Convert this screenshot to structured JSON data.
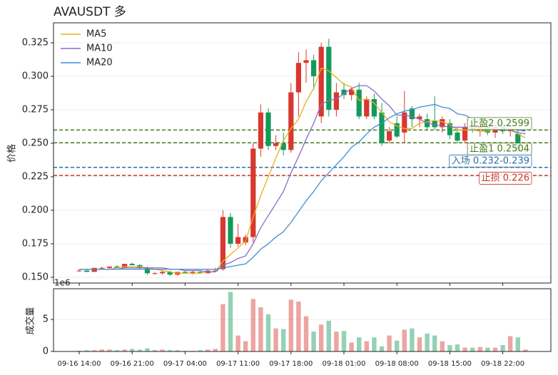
{
  "chart_data": {
    "type": "candlestick",
    "title": "AVAUSDT 多",
    "ylabel": "价格",
    "volume_ylabel": "成交量",
    "volume_offset_label": "1e6",
    "categories": [
      "09-16 14:00",
      null,
      null,
      null,
      null,
      null,
      null,
      "09-16 21:00",
      null,
      null,
      null,
      null,
      null,
      null,
      "09-17 04:00",
      null,
      null,
      null,
      null,
      null,
      null,
      "09-17 11:00",
      null,
      null,
      null,
      null,
      null,
      null,
      "09-17 18:00",
      null,
      null,
      null,
      null,
      null,
      null,
      "09-18 01:00",
      null,
      null,
      null,
      null,
      null,
      null,
      "09-18 08:00",
      null,
      null,
      null,
      null,
      null,
      null,
      "09-18 15:00",
      null,
      null,
      null,
      null,
      null,
      null,
      "09-18 22:00",
      null,
      null,
      null
    ],
    "open": [
      0.155,
      0.155,
      0.154,
      0.157,
      0.157,
      0.158,
      0.157,
      0.16,
      0.159,
      0.157,
      0.153,
      0.153,
      0.154,
      0.152,
      0.154,
      0.153,
      0.154,
      0.153,
      0.155,
      0.156,
      0.195,
      0.175,
      0.176,
      0.18,
      0.246,
      0.273,
      0.248,
      0.25,
      0.245,
      0.288,
      0.31,
      0.312,
      0.27,
      0.322,
      0.275,
      0.29,
      0.286,
      0.29,
      0.27,
      0.283,
      0.273,
      0.252,
      0.265,
      0.258,
      0.276,
      0.268,
      0.268,
      0.267,
      0.262,
      0.265,
      0.258,
      0.252,
      0.262,
      0.26,
      0.263,
      0.258,
      0.262,
      0.259,
      0.257,
      0.244
    ],
    "high": [
      0.156,
      0.156,
      0.157,
      0.158,
      0.158,
      0.159,
      0.16,
      0.161,
      0.16,
      0.158,
      0.154,
      0.155,
      0.155,
      0.154,
      0.155,
      0.155,
      0.155,
      0.156,
      0.157,
      0.2,
      0.198,
      0.19,
      0.182,
      0.25,
      0.279,
      0.276,
      0.256,
      0.258,
      0.295,
      0.318,
      0.32,
      0.316,
      0.325,
      0.328,
      0.295,
      0.295,
      0.292,
      0.295,
      0.285,
      0.287,
      0.28,
      0.262,
      0.27,
      0.289,
      0.278,
      0.272,
      0.272,
      0.285,
      0.27,
      0.268,
      0.262,
      0.265,
      0.268,
      0.266,
      0.268,
      0.264,
      0.265,
      0.263,
      0.262,
      0.246
    ],
    "low": [
      0.154,
      0.154,
      0.154,
      0.156,
      0.156,
      0.157,
      0.157,
      0.159,
      0.156,
      0.152,
      0.152,
      0.152,
      0.151,
      0.151,
      0.153,
      0.152,
      0.153,
      0.153,
      0.154,
      0.155,
      0.172,
      0.173,
      0.174,
      0.176,
      0.24,
      0.245,
      0.245,
      0.241,
      0.243,
      0.27,
      0.295,
      0.29,
      0.265,
      0.27,
      0.27,
      0.283,
      0.282,
      0.268,
      0.268,
      0.268,
      0.248,
      0.25,
      0.254,
      0.25,
      0.262,
      0.262,
      0.26,
      0.26,
      0.258,
      0.253,
      0.25,
      0.25,
      0.258,
      0.255,
      0.256,
      0.254,
      0.257,
      0.255,
      0.24,
      0.243
    ],
    "close": [
      0.155,
      0.154,
      0.157,
      0.157,
      0.158,
      0.157,
      0.16,
      0.159,
      0.157,
      0.153,
      0.153,
      0.154,
      0.152,
      0.154,
      0.153,
      0.154,
      0.153,
      0.155,
      0.155,
      0.195,
      0.175,
      0.18,
      0.18,
      0.246,
      0.273,
      0.248,
      0.25,
      0.245,
      0.288,
      0.31,
      0.312,
      0.3,
      0.322,
      0.275,
      0.288,
      0.286,
      0.29,
      0.27,
      0.283,
      0.27,
      0.25,
      0.259,
      0.255,
      0.273,
      0.268,
      0.27,
      0.262,
      0.262,
      0.268,
      0.256,
      0.252,
      0.262,
      0.26,
      0.263,
      0.258,
      0.262,
      0.259,
      0.26,
      0.244,
      0.245
    ],
    "volume": [
      0.1,
      0.2,
      0.2,
      0.3,
      0.3,
      0.2,
      0.3,
      0.4,
      0.3,
      0.5,
      0.2,
      0.3,
      0.2,
      0.2,
      0.1,
      0.1,
      0.2,
      0.3,
      0.4,
      7.4,
      9.3,
      2.5,
      1.6,
      8.2,
      6.9,
      5.8,
      3.6,
      3.5,
      8.1,
      7.8,
      5.5,
      3.1,
      4.2,
      4.8,
      3.1,
      3.2,
      1.4,
      2.2,
      1.6,
      2.2,
      0.8,
      2.5,
      1.7,
      3.4,
      3.6,
      2.2,
      2.8,
      2.5,
      1.6,
      1.0,
      1.1,
      0.6,
      0.6,
      0.7,
      0.6,
      0.6,
      1.0,
      2.4,
      2.2,
      0.3
    ],
    "up_color": "#d8382f",
    "down_color": "#139a5a",
    "series": [
      {
        "name": "MA5",
        "color": "#e8b21a",
        "values": [
          0.156,
          0.156,
          0.156,
          0.156,
          0.156,
          0.157,
          0.158,
          0.158,
          0.158,
          0.157,
          0.156,
          0.155,
          0.154,
          0.153,
          0.153,
          0.153,
          0.153,
          0.154,
          0.154,
          0.162,
          0.167,
          0.172,
          0.177,
          0.195,
          0.211,
          0.225,
          0.239,
          0.252,
          0.261,
          0.268,
          0.281,
          0.291,
          0.306,
          0.304,
          0.299,
          0.294,
          0.292,
          0.282,
          0.283,
          0.28,
          0.273,
          0.266,
          0.263,
          0.261,
          0.261,
          0.265,
          0.266,
          0.267,
          0.266,
          0.264,
          0.26,
          0.26,
          0.26,
          0.259,
          0.259,
          0.261,
          0.26,
          0.26,
          0.257,
          0.254
        ]
      },
      {
        "name": "MA10",
        "color": "#8a6bc9",
        "values": [
          0.156,
          0.156,
          0.156,
          0.156,
          0.156,
          0.156,
          0.157,
          0.157,
          0.157,
          0.157,
          0.157,
          0.157,
          0.156,
          0.156,
          0.155,
          0.155,
          0.155,
          0.154,
          0.154,
          0.159,
          0.161,
          0.164,
          0.166,
          0.175,
          0.187,
          0.196,
          0.205,
          0.214,
          0.228,
          0.24,
          0.253,
          0.265,
          0.279,
          0.282,
          0.283,
          0.287,
          0.291,
          0.293,
          0.293,
          0.289,
          0.283,
          0.278,
          0.271,
          0.271,
          0.27,
          0.268,
          0.265,
          0.264,
          0.263,
          0.262,
          0.262,
          0.262,
          0.262,
          0.261,
          0.261,
          0.26,
          0.26,
          0.26,
          0.258,
          0.257
        ]
      },
      {
        "name": "MA20",
        "color": "#3f8fd2",
        "values": [
          0.156,
          0.156,
          0.156,
          0.156,
          0.156,
          0.156,
          0.156,
          0.156,
          0.156,
          0.156,
          0.156,
          0.156,
          0.156,
          0.156,
          0.156,
          0.156,
          0.156,
          0.156,
          0.156,
          0.157,
          0.158,
          0.159,
          0.16,
          0.165,
          0.171,
          0.175,
          0.18,
          0.184,
          0.191,
          0.199,
          0.207,
          0.214,
          0.222,
          0.228,
          0.234,
          0.24,
          0.247,
          0.251,
          0.257,
          0.262,
          0.265,
          0.269,
          0.272,
          0.274,
          0.275,
          0.277,
          0.278,
          0.279,
          0.277,
          0.276,
          0.272,
          0.271,
          0.268,
          0.267,
          0.264,
          0.263,
          0.262,
          0.261,
          0.26,
          0.259
        ]
      }
    ],
    "levels": [
      {
        "value": 0.2599,
        "label": "止盈2 0.2599",
        "color": "#4a7a1c"
      },
      {
        "value": 0.2504,
        "label": "止盈1 0.2504",
        "color": "#4a7a1c"
      },
      {
        "value": 0.232,
        "label": "入场 0.232-0.239",
        "color": "#2d6fa8"
      },
      {
        "value": 0.226,
        "label": "止损 0.226",
        "color": "#c0392b"
      }
    ],
    "ylim": [
      0.1457,
      0.3399
    ],
    "yticks": [
      {
        "value": 0.15,
        "label": "0.150"
      },
      {
        "value": 0.175,
        "label": "0.175"
      },
      {
        "value": 0.2,
        "label": "0.200"
      },
      {
        "value": 0.225,
        "label": "0.225"
      },
      {
        "value": 0.25,
        "label": "0.250"
      },
      {
        "value": 0.275,
        "label": "0.275"
      },
      {
        "value": 0.3,
        "label": "0.300"
      },
      {
        "value": 0.325,
        "label": "0.325"
      }
    ],
    "volume_ylim": [
      0,
      9.8
    ],
    "volume_yticks": [
      0,
      5
    ],
    "grid": true,
    "legend": "upper left"
  }
}
